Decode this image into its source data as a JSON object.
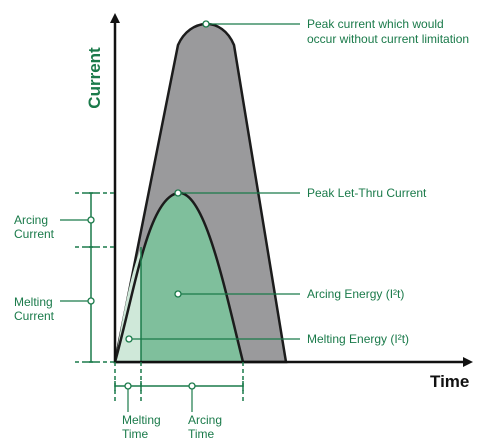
{
  "axes": {
    "y_label": "Current",
    "x_label": "Time"
  },
  "annotations": {
    "peak_uncontrolled_line1": "Peak current which would",
    "peak_uncontrolled_line2": "occur without current limitation",
    "peak_let_thru": "Peak Let-Thru Current",
    "arcing_energy": "Arcing Energy (I²t)",
    "melting_energy": "Melting Energy (I²t)"
  },
  "left_labels": {
    "arcing_current_line1": "Arcing",
    "arcing_current_line2": "Current",
    "melting_current_line1": "Melting",
    "melting_current_line2": "Current"
  },
  "bottom_labels": {
    "melting_time_line1": "Melting",
    "melting_time_line2": "Time",
    "arcing_time_line1": "Arcing",
    "arcing_time_line2": "Time"
  },
  "colors": {
    "green": "#1a7a4a",
    "gray_fill": "#9a9a9c",
    "green_fill": "#7fbf9c",
    "light_green_fill": "#cfe8d9",
    "outline": "#1c1c1c"
  }
}
